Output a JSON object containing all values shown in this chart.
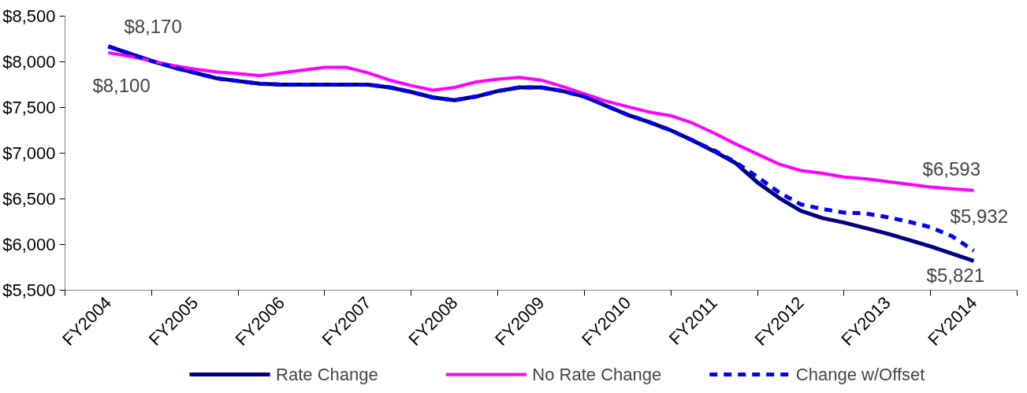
{
  "chart_data": {
    "type": "line",
    "categories": [
      "FY2004",
      null,
      null,
      null,
      "FY2005",
      null,
      null,
      null,
      "FY2006",
      null,
      null,
      null,
      "FY2007",
      null,
      null,
      null,
      "FY2008",
      null,
      null,
      null,
      "FY2009",
      null,
      null,
      null,
      "FY2010",
      null,
      null,
      null,
      "FY2011",
      null,
      null,
      null,
      "FY2012",
      null,
      null,
      null,
      "FY2013",
      null,
      null,
      null,
      "FY2014"
    ],
    "series": [
      {
        "name": "Rate Change",
        "color": "#000080",
        "values": [
          8170,
          8090,
          8010,
          7940,
          7880,
          7820,
          7790,
          7760,
          7750,
          7750,
          7750,
          7750,
          7750,
          7720,
          7670,
          7610,
          7580,
          7620,
          7680,
          7720,
          7720,
          7680,
          7620,
          7520,
          7420,
          7340,
          7250,
          7140,
          7020,
          6890,
          6680,
          6510,
          6370,
          6290,
          6240,
          6180,
          6120,
          6050,
          5980,
          5900,
          5821
        ]
      },
      {
        "name": "No Rate Change",
        "color": "#ff00ff",
        "values": [
          8100,
          8060,
          8010,
          7960,
          7920,
          7890,
          7870,
          7850,
          7880,
          7910,
          7940,
          7940,
          7880,
          7800,
          7740,
          7690,
          7720,
          7780,
          7810,
          7830,
          7800,
          7730,
          7650,
          7570,
          7510,
          7450,
          7410,
          7330,
          7220,
          7100,
          6990,
          6880,
          6810,
          6780,
          6740,
          6720,
          6690,
          6660,
          6630,
          6610,
          6593
        ]
      },
      {
        "name": "Change w/Offset",
        "color": "#0000ff",
        "line_style": "dashed",
        "values": [
          8170,
          8090,
          8010,
          7940,
          7880,
          7820,
          7790,
          7760,
          7750,
          7750,
          7750,
          7750,
          7750,
          7720,
          7670,
          7610,
          7580,
          7620,
          7680,
          7720,
          7720,
          7680,
          7620,
          7520,
          7420,
          7340,
          7250,
          7140,
          7030,
          6900,
          6740,
          6570,
          6440,
          6390,
          6350,
          6340,
          6300,
          6250,
          6190,
          6090,
          5932
        ]
      }
    ],
    "ylim": [
      5500,
      8500
    ],
    "yticks": [
      {
        "value": 5500,
        "label": "$5,500"
      },
      {
        "value": 6000,
        "label": "$6,000"
      },
      {
        "value": 6500,
        "label": "$6,500"
      },
      {
        "value": 7000,
        "label": "$7,000"
      },
      {
        "value": 7500,
        "label": "$7,500"
      },
      {
        "value": 8000,
        "label": "$8,000"
      },
      {
        "value": 8500,
        "label": "$8,500"
      }
    ],
    "annotations": [
      {
        "text": "$8,170",
        "x": "FY2004",
        "y": 8170
      },
      {
        "text": "$8,100",
        "x": "FY2004",
        "y": 8100
      },
      {
        "text": "$6,593",
        "x": "FY2014",
        "y": 6593
      },
      {
        "text": "$5,932",
        "x": "FY2014",
        "y": 5932
      },
      {
        "text": "$5,821",
        "x": "FY2014",
        "y": 5821
      }
    ],
    "legend": "bottom"
  }
}
